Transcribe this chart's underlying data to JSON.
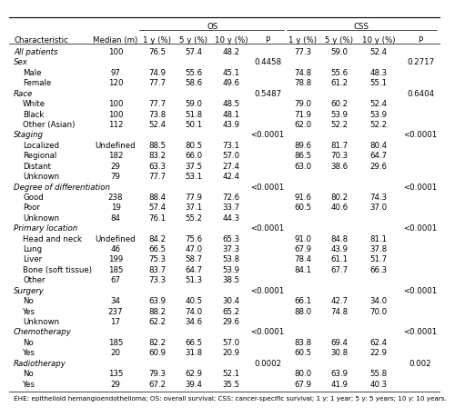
{
  "os_header": "OS",
  "css_header": "CSS",
  "rows": [
    {
      "label": "All patients",
      "indent": 0,
      "median": "100",
      "os1": "76.5",
      "os5": "57.4",
      "os10": "48.2",
      "osP": "",
      "css1": "77.3",
      "css5": "59.0",
      "css10": "52.4",
      "cssP": ""
    },
    {
      "label": "Sex",
      "indent": 0,
      "median": "",
      "os1": "",
      "os5": "",
      "os10": "",
      "osP": "0.4458",
      "css1": "",
      "css5": "",
      "css10": "",
      "cssP": "0.2717"
    },
    {
      "label": "Male",
      "indent": 1,
      "median": "97",
      "os1": "74.9",
      "os5": "55.6",
      "os10": "45.1",
      "osP": "",
      "css1": "74.8",
      "css5": "55.6",
      "css10": "48.3",
      "cssP": ""
    },
    {
      "label": "Female",
      "indent": 1,
      "median": "120",
      "os1": "77.7",
      "os5": "58.6",
      "os10": "49.6",
      "osP": "",
      "css1": "78.8",
      "css5": "61.2",
      "css10": "55.1",
      "cssP": ""
    },
    {
      "label": "Race",
      "indent": 0,
      "median": "",
      "os1": "",
      "os5": "",
      "os10": "",
      "osP": "0.5487",
      "css1": "",
      "css5": "",
      "css10": "",
      "cssP": "0.6404"
    },
    {
      "label": "White",
      "indent": 1,
      "median": "100",
      "os1": "77.7",
      "os5": "59.0",
      "os10": "48.5",
      "osP": "",
      "css1": "79.0",
      "css5": "60.2",
      "css10": "52.4",
      "cssP": ""
    },
    {
      "label": "Black",
      "indent": 1,
      "median": "100",
      "os1": "73.8",
      "os5": "51.8",
      "os10": "48.1",
      "osP": "",
      "css1": "71.9",
      "css5": "53.9",
      "css10": "53.9",
      "cssP": ""
    },
    {
      "label": "Other (Asian)",
      "indent": 1,
      "median": "112",
      "os1": "52.4",
      "os5": "50.1",
      "os10": "43.9",
      "osP": "",
      "css1": "62.0",
      "css5": "52.2",
      "css10": "52.2",
      "cssP": ""
    },
    {
      "label": "Staging",
      "indent": 0,
      "median": "",
      "os1": "",
      "os5": "",
      "os10": "",
      "osP": "<0.0001",
      "css1": "",
      "css5": "",
      "css10": "",
      "cssP": "<0.0001"
    },
    {
      "label": "Localized",
      "indent": 1,
      "median": "Undefined",
      "os1": "88.5",
      "os5": "80.5",
      "os10": "73.1",
      "osP": "",
      "css1": "89.6",
      "css5": "81.7",
      "css10": "80.4",
      "cssP": ""
    },
    {
      "label": "Regional",
      "indent": 1,
      "median": "182",
      "os1": "83.2",
      "os5": "66.0",
      "os10": "57.0",
      "osP": "",
      "css1": "86.5",
      "css5": "70.3",
      "css10": "64.7",
      "cssP": ""
    },
    {
      "label": "Distant",
      "indent": 1,
      "median": "29",
      "os1": "63.3",
      "os5": "37.5",
      "os10": "27.4",
      "osP": "",
      "css1": "63.0",
      "css5": "38.6",
      "css10": "29.6",
      "cssP": ""
    },
    {
      "label": "Unknown",
      "indent": 1,
      "median": "79",
      "os1": "77.7",
      "os5": "53.1",
      "os10": "42.4",
      "osP": "",
      "css1": "",
      "css5": "",
      "css10": "",
      "cssP": ""
    },
    {
      "label": "Degree of differentiation",
      "indent": 0,
      "median": "",
      "os1": "",
      "os5": "",
      "os10": "",
      "osP": "<0.0001",
      "css1": "",
      "css5": "",
      "css10": "",
      "cssP": "<0.0001"
    },
    {
      "label": "Good",
      "indent": 1,
      "median": "238",
      "os1": "88.4",
      "os5": "77.9",
      "os10": "72.6",
      "osP": "",
      "css1": "91.6",
      "css5": "80.2",
      "css10": "74.3",
      "cssP": ""
    },
    {
      "label": "Poor",
      "indent": 1,
      "median": "19",
      "os1": "57.4",
      "os5": "37.1",
      "os10": "33.7",
      "osP": "",
      "css1": "60.5",
      "css5": "40.6",
      "css10": "37.0",
      "cssP": ""
    },
    {
      "label": "Unknown",
      "indent": 1,
      "median": "84",
      "os1": "76.1",
      "os5": "55.2",
      "os10": "44.3",
      "osP": "",
      "css1": "",
      "css5": "",
      "css10": "",
      "cssP": ""
    },
    {
      "label": "Primary location",
      "indent": 0,
      "median": "",
      "os1": "",
      "os5": "",
      "os10": "",
      "osP": "<0.0001",
      "css1": "",
      "css5": "",
      "css10": "",
      "cssP": "<0.0001"
    },
    {
      "label": "Head and neck",
      "indent": 1,
      "median": "Undefined",
      "os1": "84.2",
      "os5": "75.6",
      "os10": "65.3",
      "osP": "",
      "css1": "91.0",
      "css5": "84.8",
      "css10": "81.1",
      "cssP": ""
    },
    {
      "label": "Lung",
      "indent": 1,
      "median": "46",
      "os1": "66.5",
      "os5": "47.0",
      "os10": "37.3",
      "osP": "",
      "css1": "67.9",
      "css5": "43.9",
      "css10": "37.8",
      "cssP": ""
    },
    {
      "label": "Liver",
      "indent": 1,
      "median": "199",
      "os1": "75.3",
      "os5": "58.7",
      "os10": "53.8",
      "osP": "",
      "css1": "78.4",
      "css5": "61.1",
      "css10": "51.7",
      "cssP": ""
    },
    {
      "label": "Bone (soft tissue)",
      "indent": 1,
      "median": "185",
      "os1": "83.7",
      "os5": "64.7",
      "os10": "53.9",
      "osP": "",
      "css1": "84.1",
      "css5": "67.7",
      "css10": "66.3",
      "cssP": ""
    },
    {
      "label": "Other",
      "indent": 1,
      "median": "67",
      "os1": "73.3",
      "os5": "51.3",
      "os10": "38.5",
      "osP": "",
      "css1": "",
      "css5": "",
      "css10": "",
      "cssP": ""
    },
    {
      "label": "Surgery",
      "indent": 0,
      "median": "",
      "os1": "",
      "os5": "",
      "os10": "",
      "osP": "<0.0001",
      "css1": "",
      "css5": "",
      "css10": "",
      "cssP": "<0.0001"
    },
    {
      "label": "No",
      "indent": 1,
      "median": "34",
      "os1": "63.9",
      "os5": "40.5",
      "os10": "30.4",
      "osP": "",
      "css1": "66.1",
      "css5": "42.7",
      "css10": "34.0",
      "cssP": ""
    },
    {
      "label": "Yes",
      "indent": 1,
      "median": "237",
      "os1": "88.2",
      "os5": "74.0",
      "os10": "65.2",
      "osP": "",
      "css1": "88.0",
      "css5": "74.8",
      "css10": "70.0",
      "cssP": ""
    },
    {
      "label": "Unknown",
      "indent": 1,
      "median": "17",
      "os1": "62.2",
      "os5": "34.6",
      "os10": "29.6",
      "osP": "",
      "css1": "",
      "css5": "",
      "css10": "",
      "cssP": ""
    },
    {
      "label": "Chemotherapy",
      "indent": 0,
      "median": "",
      "os1": "",
      "os5": "",
      "os10": "",
      "osP": "<0.0001",
      "css1": "",
      "css5": "",
      "css10": "",
      "cssP": "<0.0001"
    },
    {
      "label": "No",
      "indent": 1,
      "median": "185",
      "os1": "82.2",
      "os5": "66.5",
      "os10": "57.0",
      "osP": "",
      "css1": "83.8",
      "css5": "69.4",
      "css10": "62.4",
      "cssP": ""
    },
    {
      "label": "Yes",
      "indent": 1,
      "median": "20",
      "os1": "60.9",
      "os5": "31.8",
      "os10": "20.9",
      "osP": "",
      "css1": "60.5",
      "css5": "30.8",
      "css10": "22.9",
      "cssP": ""
    },
    {
      "label": "Radiotherapy",
      "indent": 0,
      "median": "",
      "os1": "",
      "os5": "",
      "os10": "",
      "osP": "0.0002",
      "css1": "",
      "css5": "",
      "css10": "",
      "cssP": "0.002"
    },
    {
      "label": "No",
      "indent": 1,
      "median": "135",
      "os1": "79.3",
      "os5": "62.9",
      "os10": "52.1",
      "osP": "",
      "css1": "80.0",
      "css5": "63.9",
      "css10": "55.8",
      "cssP": ""
    },
    {
      "label": "Yes",
      "indent": 1,
      "median": "29",
      "os1": "67.2",
      "os5": "39.4",
      "os10": "35.5",
      "osP": "",
      "css1": "67.9",
      "css5": "41.9",
      "css10": "40.3",
      "cssP": ""
    }
  ],
  "footnote": "EHE: epithelioid hemangioendothelioma; OS: overall survival; CSS: cancer-specific survival; 1 y: 1 year; 5 y: 5 years; 10 y: 10 years.",
  "bg_color": "#ffffff",
  "text_color": "#000000",
  "line_color": "#000000",
  "font_size": 6.2,
  "footnote_font_size": 5.2
}
